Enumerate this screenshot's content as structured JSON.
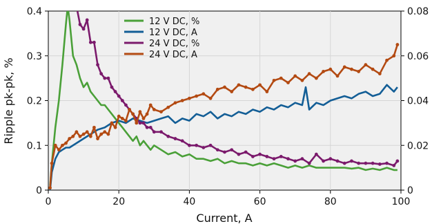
{
  "chart_data": {
    "type": "line",
    "xlabel": "Current, A",
    "ylabel": "Ripple pk-pk, %",
    "xlim": [
      0,
      100
    ],
    "ylim_left": [
      0,
      0.4
    ],
    "ylim_right": [
      0,
      0.08
    ],
    "x_ticks": [
      0,
      20,
      40,
      60,
      80,
      100
    ],
    "x_tick_labels": [
      "0",
      "20",
      "40",
      "60",
      "80",
      "100"
    ],
    "y_left_ticks": [
      0,
      0.1,
      0.2,
      0.3,
      0.4
    ],
    "y_left_tick_labels": [
      "0",
      "0.1",
      "0.2",
      "0.3",
      "0.4"
    ],
    "y_right_ticks": [
      0,
      0.02,
      0.04,
      0.06,
      0.08
    ],
    "y_right_tick_labels": [
      "0",
      "0.02",
      "0.04",
      "0.06",
      "0.08"
    ],
    "grid": true,
    "legend_position": "top-center",
    "series": [
      {
        "name": "12 V DC, %",
        "axis": "left",
        "color": "#4aa038",
        "markers": false,
        "x": [
          0.5,
          1,
          2,
          3,
          4,
          5,
          5.5,
          6,
          7,
          8,
          9,
          10,
          11,
          12,
          13,
          14,
          15,
          16,
          17,
          18,
          19,
          20,
          21,
          22,
          23,
          24,
          25,
          26,
          27,
          28,
          29,
          30,
          32,
          34,
          36,
          38,
          40,
          42,
          44,
          46,
          48,
          50,
          52,
          54,
          56,
          58,
          60,
          62,
          64,
          66,
          68,
          70,
          72,
          74,
          76,
          78,
          80,
          82,
          84,
          86,
          88,
          90,
          92,
          94,
          96,
          98,
          99
        ],
        "values": [
          0.01,
          0.06,
          0.14,
          0.2,
          0.28,
          0.37,
          0.41,
          0.38,
          0.3,
          0.28,
          0.25,
          0.23,
          0.24,
          0.22,
          0.21,
          0.2,
          0.19,
          0.19,
          0.18,
          0.17,
          0.16,
          0.15,
          0.14,
          0.13,
          0.12,
          0.11,
          0.12,
          0.1,
          0.11,
          0.1,
          0.09,
          0.1,
          0.09,
          0.08,
          0.085,
          0.075,
          0.08,
          0.07,
          0.07,
          0.065,
          0.07,
          0.06,
          0.065,
          0.06,
          0.06,
          0.055,
          0.06,
          0.055,
          0.06,
          0.055,
          0.05,
          0.055,
          0.05,
          0.055,
          0.05,
          0.05,
          0.05,
          0.05,
          0.05,
          0.048,
          0.05,
          0.045,
          0.048,
          0.045,
          0.05,
          0.045,
          0.045
        ]
      },
      {
        "name": "12 V DC, A",
        "axis": "right",
        "color": "#135e96",
        "markers": false,
        "x": [
          0.5,
          1,
          2,
          3,
          4,
          5,
          6,
          8,
          10,
          12,
          14,
          16,
          18,
          20,
          22,
          24,
          26,
          28,
          30,
          32,
          34,
          36,
          38,
          40,
          42,
          44,
          46,
          48,
          50,
          52,
          54,
          56,
          58,
          60,
          62,
          64,
          66,
          68,
          70,
          72,
          73,
          74,
          76,
          78,
          80,
          82,
          84,
          86,
          88,
          90,
          92,
          94,
          96,
          98,
          99
        ],
        "values": [
          0,
          0.008,
          0.014,
          0.017,
          0.018,
          0.019,
          0.019,
          0.021,
          0.023,
          0.025,
          0.027,
          0.028,
          0.03,
          0.031,
          0.03,
          0.032,
          0.031,
          0.03,
          0.031,
          0.032,
          0.033,
          0.03,
          0.032,
          0.031,
          0.034,
          0.033,
          0.035,
          0.032,
          0.034,
          0.033,
          0.035,
          0.034,
          0.036,
          0.035,
          0.037,
          0.036,
          0.038,
          0.037,
          0.039,
          0.038,
          0.046,
          0.036,
          0.039,
          0.038,
          0.04,
          0.041,
          0.042,
          0.041,
          0.043,
          0.044,
          0.042,
          0.043,
          0.047,
          0.044,
          0.046
        ]
      },
      {
        "name": "24 V DC, %",
        "axis": "left",
        "color": "#7b1a6c",
        "markers": true,
        "x": [
          8,
          9,
          10,
          11,
          12,
          13,
          14,
          15,
          16,
          17,
          18,
          19,
          20,
          21,
          22,
          23,
          24,
          25,
          26,
          27,
          28,
          29,
          30,
          32,
          34,
          36,
          38,
          40,
          42,
          44,
          46,
          48,
          50,
          52,
          54,
          56,
          58,
          60,
          62,
          64,
          66,
          68,
          70,
          72,
          74,
          76,
          78,
          80,
          82,
          84,
          86,
          88,
          90,
          92,
          94,
          96,
          98,
          99
        ],
        "values": [
          0.41,
          0.37,
          0.36,
          0.38,
          0.33,
          0.33,
          0.28,
          0.26,
          0.25,
          0.25,
          0.23,
          0.22,
          0.21,
          0.2,
          0.19,
          0.18,
          0.17,
          0.16,
          0.15,
          0.15,
          0.14,
          0.14,
          0.13,
          0.13,
          0.12,
          0.115,
          0.11,
          0.1,
          0.1,
          0.095,
          0.1,
          0.09,
          0.085,
          0.09,
          0.08,
          0.085,
          0.075,
          0.08,
          0.075,
          0.07,
          0.075,
          0.07,
          0.065,
          0.07,
          0.06,
          0.08,
          0.065,
          0.07,
          0.065,
          0.06,
          0.065,
          0.06,
          0.06,
          0.06,
          0.058,
          0.06,
          0.055,
          0.065
        ]
      },
      {
        "name": "24 V DC, A",
        "axis": "right",
        "color": "#b34a12",
        "markers": true,
        "x": [
          0.5,
          1,
          2,
          3,
          4,
          5,
          6,
          7,
          8,
          9,
          10,
          11,
          12,
          13,
          14,
          15,
          16,
          17,
          18,
          19,
          20,
          21,
          22,
          23,
          24,
          25,
          26,
          27,
          28,
          29,
          30,
          32,
          34,
          36,
          38,
          40,
          42,
          44,
          46,
          48,
          50,
          52,
          54,
          56,
          58,
          60,
          62,
          64,
          66,
          68,
          70,
          72,
          74,
          76,
          78,
          80,
          82,
          84,
          86,
          88,
          90,
          92,
          94,
          96,
          98,
          99
        ],
        "values": [
          0.001,
          0.012,
          0.02,
          0.018,
          0.02,
          0.021,
          0.023,
          0.024,
          0.026,
          0.024,
          0.025,
          0.026,
          0.024,
          0.028,
          0.023,
          0.025,
          0.026,
          0.025,
          0.03,
          0.028,
          0.033,
          0.032,
          0.031,
          0.036,
          0.034,
          0.03,
          0.035,
          0.032,
          0.034,
          0.038,
          0.036,
          0.035,
          0.037,
          0.039,
          0.04,
          0.041,
          0.042,
          0.043,
          0.041,
          0.045,
          0.046,
          0.044,
          0.047,
          0.046,
          0.045,
          0.047,
          0.044,
          0.049,
          0.05,
          0.048,
          0.051,
          0.049,
          0.052,
          0.05,
          0.053,
          0.054,
          0.051,
          0.055,
          0.054,
          0.053,
          0.056,
          0.054,
          0.052,
          0.058,
          0.06,
          0.065
        ]
      }
    ]
  }
}
